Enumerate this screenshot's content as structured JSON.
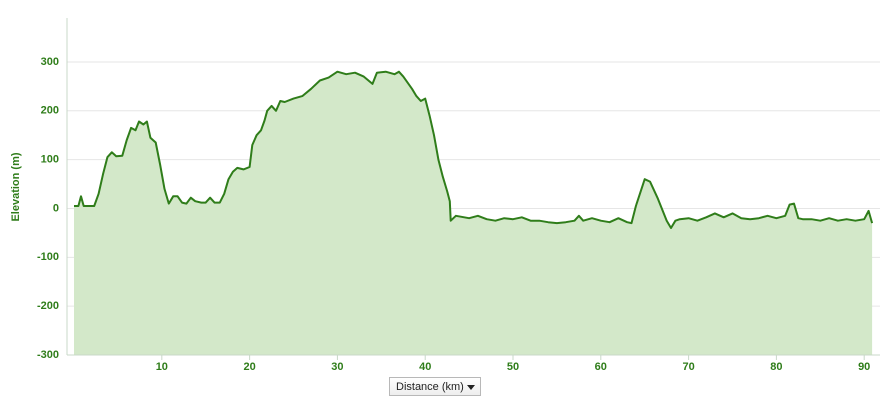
{
  "chart_data": {
    "type": "area",
    "y_label": "Elevation (m)",
    "x_label": "Distance (km)",
    "color": "#2f7d1a",
    "fill_color": "#d3e8c9",
    "grid": true,
    "xlim": [
      -0.8,
      91.8
    ],
    "ylim": [
      -300,
      390
    ],
    "xticks": [
      10,
      20,
      30,
      40,
      50,
      60,
      70,
      80,
      90
    ],
    "yticks": [
      -300,
      -200,
      -100,
      0,
      100,
      200,
      300
    ],
    "x": [
      0,
      0.5,
      0.8,
      1.1,
      2.3,
      2.8,
      3.3,
      3.8,
      4.3,
      4.8,
      5.5,
      6.0,
      6.5,
      7.0,
      7.4,
      7.9,
      8.3,
      8.7,
      9.3,
      9.8,
      10.3,
      10.8,
      11.3,
      11.8,
      12.3,
      12.8,
      13.3,
      13.8,
      14.5,
      15.0,
      15.5,
      16.0,
      16.6,
      17.1,
      17.6,
      18.1,
      18.6,
      19.3,
      20.0,
      20.3,
      20.8,
      21.3,
      21.7,
      22.0,
      22.5,
      23.0,
      23.5,
      24.0,
      25,
      26,
      27,
      28,
      29,
      30,
      31,
      32,
      33,
      34,
      34.5,
      35.5,
      36.5,
      37,
      37.5,
      38.5,
      39,
      39.5,
      40,
      40.5,
      41,
      41.5,
      42,
      42.5,
      42.8,
      42.9,
      43.5,
      45,
      46,
      47,
      48,
      49,
      50,
      51,
      52,
      53,
      54,
      55,
      56,
      57,
      57.5,
      58,
      59,
      60,
      61,
      62,
      63,
      63.5,
      64,
      65,
      65.6,
      66.5,
      67.5,
      68,
      68.5,
      69,
      70,
      71,
      72,
      73,
      74,
      75,
      76,
      77,
      78,
      79,
      80,
      81,
      81.5,
      82,
      82.5,
      83,
      84,
      85,
      86,
      87,
      88,
      89,
      90,
      90.5,
      90.9
    ],
    "values": [
      5,
      5,
      25,
      5,
      5,
      30,
      70,
      105,
      115,
      107,
      108,
      140,
      165,
      160,
      178,
      172,
      178,
      145,
      135,
      90,
      40,
      10,
      25,
      25,
      12,
      10,
      22,
      15,
      12,
      12,
      22,
      12,
      12,
      30,
      60,
      75,
      83,
      80,
      85,
      130,
      150,
      160,
      180,
      200,
      210,
      200,
      220,
      218,
      225,
      230,
      245,
      262,
      268,
      280,
      275,
      278,
      270,
      255,
      278,
      280,
      275,
      280,
      270,
      245,
      230,
      220,
      225,
      190,
      150,
      100,
      65,
      35,
      15,
      -25,
      -15,
      -20,
      -15,
      -22,
      -25,
      -20,
      -22,
      -18,
      -25,
      -25,
      -28,
      -30,
      -28,
      -25,
      -15,
      -25,
      -20,
      -25,
      -28,
      -20,
      -28,
      -30,
      5,
      60,
      55,
      20,
      -25,
      -40,
      -25,
      -22,
      -20,
      -25,
      -18,
      -10,
      -18,
      -10,
      -20,
      -22,
      -20,
      -15,
      -20,
      -15,
      8,
      10,
      -20,
      -22,
      -22,
      -25,
      -20,
      -25,
      -22,
      -25,
      -22,
      -5,
      -30
    ]
  }
}
